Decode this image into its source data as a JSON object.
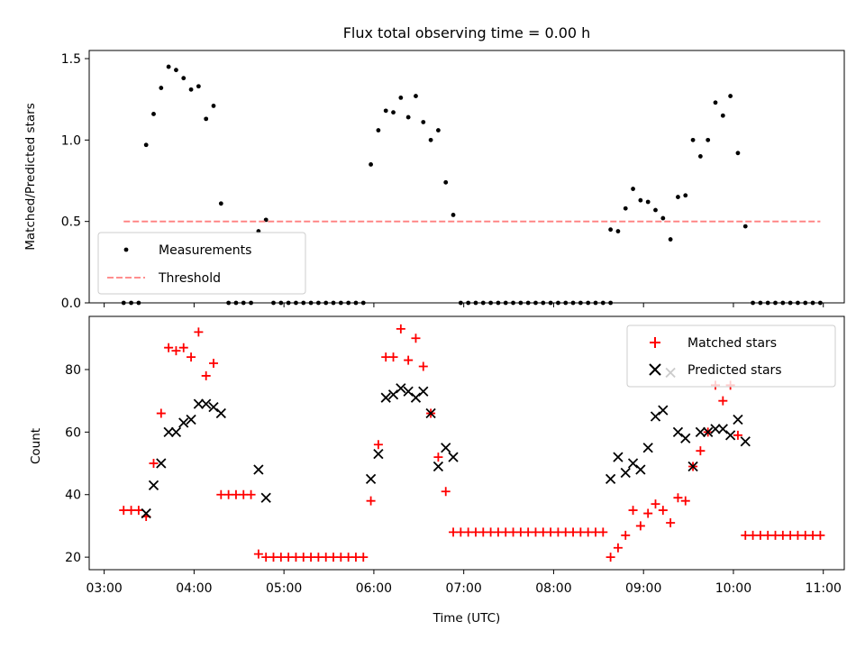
{
  "chart_data": [
    {
      "type": "scatter",
      "title": "Flux total observing time = 0.00 h",
      "xlabel": "",
      "ylabel": "Matched/Predicted stars",
      "xlim": [
        "02:50",
        "11:14"
      ],
      "ylim": [
        0,
        1.55
      ],
      "xticks": [
        "03:00",
        "04:00",
        "05:00",
        "06:00",
        "07:00",
        "08:00",
        "09:00",
        "10:00",
        "11:00"
      ],
      "xtick_labels_shown": false,
      "yticks": [
        0.0,
        0.5,
        1.0,
        1.5
      ],
      "ytick_labels": [
        "0.0",
        "0.5",
        "1.0",
        "1.5"
      ],
      "legend": "lower-left",
      "series": [
        {
          "name": "Measurements",
          "marker": "dot",
          "color": "#000000",
          "points": [
            [
              "03:13",
              0
            ],
            [
              "03:18",
              0
            ],
            [
              "03:23",
              0
            ],
            [
              "03:28",
              0.97
            ],
            [
              "03:33",
              1.16
            ],
            [
              "03:38",
              1.32
            ],
            [
              "03:43",
              1.45
            ],
            [
              "03:48",
              1.43
            ],
            [
              "03:53",
              1.38
            ],
            [
              "03:58",
              1.31
            ],
            [
              "04:03",
              1.33
            ],
            [
              "04:08",
              1.13
            ],
            [
              "04:13",
              1.21
            ],
            [
              "04:18",
              0.61
            ],
            [
              "04:23",
              0
            ],
            [
              "04:28",
              0
            ],
            [
              "04:33",
              0
            ],
            [
              "04:38",
              0
            ],
            [
              "04:43",
              0.44
            ],
            [
              "04:48",
              0.51
            ],
            [
              "04:53",
              0
            ],
            [
              "04:58",
              0
            ],
            [
              "05:03",
              0
            ],
            [
              "05:08",
              0
            ],
            [
              "05:13",
              0
            ],
            [
              "05:18",
              0
            ],
            [
              "05:23",
              0
            ],
            [
              "05:28",
              0
            ],
            [
              "05:33",
              0
            ],
            [
              "05:38",
              0
            ],
            [
              "05:43",
              0
            ],
            [
              "05:48",
              0
            ],
            [
              "05:53",
              0
            ],
            [
              "05:58",
              0.85
            ],
            [
              "06:03",
              1.06
            ],
            [
              "06:08",
              1.18
            ],
            [
              "06:13",
              1.17
            ],
            [
              "06:18",
              1.26
            ],
            [
              "06:23",
              1.14
            ],
            [
              "06:28",
              1.27
            ],
            [
              "06:33",
              1.11
            ],
            [
              "06:38",
              1.0
            ],
            [
              "06:43",
              1.06
            ],
            [
              "06:48",
              0.74
            ],
            [
              "06:53",
              0.54
            ],
            [
              "06:58",
              0
            ],
            [
              "07:03",
              0
            ],
            [
              "07:08",
              0
            ],
            [
              "07:13",
              0
            ],
            [
              "07:18",
              0
            ],
            [
              "07:23",
              0
            ],
            [
              "07:28",
              0
            ],
            [
              "07:33",
              0
            ],
            [
              "07:38",
              0
            ],
            [
              "07:43",
              0
            ],
            [
              "07:48",
              0
            ],
            [
              "07:53",
              0
            ],
            [
              "07:58",
              0
            ],
            [
              "08:03",
              0
            ],
            [
              "08:08",
              0
            ],
            [
              "08:13",
              0
            ],
            [
              "08:18",
              0
            ],
            [
              "08:23",
              0
            ],
            [
              "08:28",
              0
            ],
            [
              "08:33",
              0
            ],
            [
              "08:38",
              0
            ],
            [
              "08:38",
              0.45
            ],
            [
              "08:43",
              0.44
            ],
            [
              "08:48",
              0.58
            ],
            [
              "08:53",
              0.7
            ],
            [
              "08:58",
              0.63
            ],
            [
              "09:03",
              0.62
            ],
            [
              "09:08",
              0.57
            ],
            [
              "09:13",
              0.52
            ],
            [
              "09:18",
              0.39
            ],
            [
              "09:23",
              0.65
            ],
            [
              "09:28",
              0.66
            ],
            [
              "09:33",
              1.0
            ],
            [
              "09:38",
              0.9
            ],
            [
              "09:43",
              1.0
            ],
            [
              "09:48",
              1.23
            ],
            [
              "09:53",
              1.15
            ],
            [
              "09:58",
              1.27
            ],
            [
              "10:03",
              0.92
            ],
            [
              "10:08",
              0.47
            ],
            [
              "10:13",
              0
            ],
            [
              "10:18",
              0
            ],
            [
              "10:23",
              0
            ],
            [
              "10:28",
              0
            ],
            [
              "10:33",
              0
            ],
            [
              "10:38",
              0
            ],
            [
              "10:43",
              0
            ],
            [
              "10:48",
              0
            ],
            [
              "10:53",
              0
            ],
            [
              "10:58",
              0
            ]
          ]
        },
        {
          "name": "Threshold",
          "marker": "dashed-line",
          "color": "#ff7f7f",
          "points": [
            [
              "03:13",
              0.5
            ],
            [
              "10:58",
              0.5
            ]
          ]
        }
      ]
    },
    {
      "type": "scatter",
      "title": "",
      "xlabel": "Time (UTC)",
      "ylabel": "Count",
      "xlim": [
        "02:50",
        "11:14"
      ],
      "ylim": [
        16,
        97
      ],
      "xticks": [
        "03:00",
        "04:00",
        "05:00",
        "06:00",
        "07:00",
        "08:00",
        "09:00",
        "10:00",
        "11:00"
      ],
      "xtick_labels": [
        "03:00",
        "04:00",
        "05:00",
        "06:00",
        "07:00",
        "08:00",
        "09:00",
        "10:00",
        "11:00"
      ],
      "yticks": [
        20,
        40,
        60,
        80
      ],
      "ytick_labels": [
        "20",
        "40",
        "60",
        "80"
      ],
      "legend": "top-right",
      "series": [
        {
          "name": "Matched stars",
          "marker": "plus",
          "color": "#ff0000",
          "points": [
            [
              "03:13",
              35
            ],
            [
              "03:18",
              35
            ],
            [
              "03:23",
              35
            ],
            [
              "03:28",
              33
            ],
            [
              "03:33",
              50
            ],
            [
              "03:38",
              66
            ],
            [
              "03:43",
              87
            ],
            [
              "03:48",
              86
            ],
            [
              "03:53",
              87
            ],
            [
              "03:58",
              84
            ],
            [
              "04:03",
              92
            ],
            [
              "04:08",
              78
            ],
            [
              "04:13",
              82
            ],
            [
              "04:18",
              40
            ],
            [
              "04:23",
              40
            ],
            [
              "04:28",
              40
            ],
            [
              "04:33",
              40
            ],
            [
              "04:38",
              40
            ],
            [
              "04:43",
              21
            ],
            [
              "04:48",
              20
            ],
            [
              "04:53",
              20
            ],
            [
              "04:58",
              20
            ],
            [
              "05:03",
              20
            ],
            [
              "05:08",
              20
            ],
            [
              "05:13",
              20
            ],
            [
              "05:18",
              20
            ],
            [
              "05:23",
              20
            ],
            [
              "05:28",
              20
            ],
            [
              "05:33",
              20
            ],
            [
              "05:38",
              20
            ],
            [
              "05:43",
              20
            ],
            [
              "05:48",
              20
            ],
            [
              "05:53",
              20
            ],
            [
              "05:58",
              38
            ],
            [
              "06:03",
              56
            ],
            [
              "06:08",
              84
            ],
            [
              "06:13",
              84
            ],
            [
              "06:18",
              93
            ],
            [
              "06:23",
              83
            ],
            [
              "06:28",
              90
            ],
            [
              "06:33",
              81
            ],
            [
              "06:38",
              66
            ],
            [
              "06:43",
              52
            ],
            [
              "06:48",
              41
            ],
            [
              "06:53",
              28
            ],
            [
              "06:58",
              28
            ],
            [
              "07:03",
              28
            ],
            [
              "07:08",
              28
            ],
            [
              "07:13",
              28
            ],
            [
              "07:18",
              28
            ],
            [
              "07:23",
              28
            ],
            [
              "07:28",
              28
            ],
            [
              "07:33",
              28
            ],
            [
              "07:38",
              28
            ],
            [
              "07:43",
              28
            ],
            [
              "07:48",
              28
            ],
            [
              "07:53",
              28
            ],
            [
              "07:58",
              28
            ],
            [
              "08:03",
              28
            ],
            [
              "08:08",
              28
            ],
            [
              "08:13",
              28
            ],
            [
              "08:18",
              28
            ],
            [
              "08:23",
              28
            ],
            [
              "08:28",
              28
            ],
            [
              "08:33",
              28
            ],
            [
              "08:38",
              20
            ],
            [
              "08:43",
              23
            ],
            [
              "08:48",
              27
            ],
            [
              "08:53",
              35
            ],
            [
              "08:58",
              30
            ],
            [
              "09:03",
              34
            ],
            [
              "09:08",
              37
            ],
            [
              "09:13",
              35
            ],
            [
              "09:18",
              31
            ],
            [
              "09:23",
              39
            ],
            [
              "09:28",
              38
            ],
            [
              "09:33",
              49
            ],
            [
              "09:38",
              54
            ],
            [
              "09:43",
              60
            ],
            [
              "09:48",
              75
            ],
            [
              "09:53",
              70
            ],
            [
              "09:58",
              75
            ],
            [
              "10:03",
              59
            ],
            [
              "10:08",
              27
            ],
            [
              "10:13",
              27
            ],
            [
              "10:18",
              27
            ],
            [
              "10:23",
              27
            ],
            [
              "10:28",
              27
            ],
            [
              "10:33",
              27
            ],
            [
              "10:38",
              27
            ],
            [
              "10:43",
              27
            ],
            [
              "10:48",
              27
            ],
            [
              "10:53",
              27
            ],
            [
              "10:58",
              27
            ]
          ]
        },
        {
          "name": "Predicted stars",
          "marker": "x",
          "color": "#000000",
          "points": [
            [
              "03:28",
              34
            ],
            [
              "03:33",
              43
            ],
            [
              "03:38",
              50
            ],
            [
              "03:43",
              60
            ],
            [
              "03:48",
              60
            ],
            [
              "03:53",
              63
            ],
            [
              "03:58",
              64
            ],
            [
              "04:03",
              69
            ],
            [
              "04:08",
              69
            ],
            [
              "04:13",
              68
            ],
            [
              "04:18",
              66
            ],
            [
              "04:43",
              48
            ],
            [
              "04:48",
              39
            ],
            [
              "05:58",
              45
            ],
            [
              "06:03",
              53
            ],
            [
              "06:08",
              71
            ],
            [
              "06:13",
              72
            ],
            [
              "06:18",
              74
            ],
            [
              "06:23",
              73
            ],
            [
              "06:28",
              71
            ],
            [
              "06:33",
              73
            ],
            [
              "06:38",
              66
            ],
            [
              "06:43",
              49
            ],
            [
              "06:48",
              55
            ],
            [
              "06:53",
              52
            ],
            [
              "08:38",
              45
            ],
            [
              "08:43",
              52
            ],
            [
              "08:48",
              47
            ],
            [
              "08:53",
              50
            ],
            [
              "08:58",
              48
            ],
            [
              "09:03",
              55
            ],
            [
              "09:08",
              65
            ],
            [
              "09:13",
              67
            ],
            [
              "09:18",
              79
            ],
            [
              "09:23",
              60
            ],
            [
              "09:28",
              58
            ],
            [
              "09:33",
              49
            ],
            [
              "09:38",
              60
            ],
            [
              "09:43",
              60
            ],
            [
              "09:48",
              61
            ],
            [
              "09:53",
              61
            ],
            [
              "09:58",
              59
            ],
            [
              "10:03",
              64
            ],
            [
              "10:08",
              57
            ]
          ]
        }
      ]
    }
  ]
}
